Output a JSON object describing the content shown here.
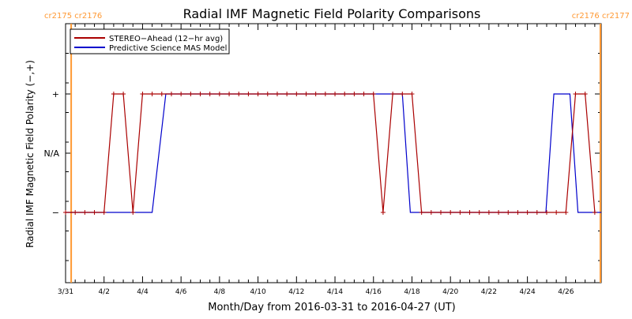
{
  "chart_data": {
    "type": "line",
    "title": "Radial IMF Magnetic Field Polarity Comparisons",
    "xlabel": "Month/Day from 2016-03-31 to 2016-04-27 (UT)",
    "ylabel": "Radial IMF Magnetic Field Polarity (−,+)",
    "xlim": [
      "2016-03-31",
      "2016-04-27T20:00"
    ],
    "y_levels": [
      "−",
      "N/A",
      "+"
    ],
    "y_tick_labels": [
      "−",
      "N/A",
      "+"
    ],
    "x_tick_labels": [
      "3/31",
      "4/2",
      "4/4",
      "4/6",
      "4/8",
      "4/10",
      "4/12",
      "4/14",
      "4/16",
      "4/18",
      "4/20",
      "4/22",
      "4/24",
      "4/26"
    ],
    "grid": false,
    "legend_position": "top-left",
    "carrington_markers": [
      {
        "label": "cr2175 cr2176",
        "x": "2016-03-31T07:00",
        "side": "left"
      },
      {
        "label": "cr2176 cr2177",
        "x": "2016-04-27T19:00",
        "side": "right"
      }
    ],
    "series": [
      {
        "name": "STEREO−Ahead (12−hr avg)",
        "color": "#aa0000",
        "markers": true,
        "points": [
          [
            "2016-03-31T00:00",
            "−"
          ],
          [
            "2016-03-31T12:00",
            "−"
          ],
          [
            "2016-04-01T00:00",
            "−"
          ],
          [
            "2016-04-01T12:00",
            "−"
          ],
          [
            "2016-04-02T00:00",
            "−"
          ],
          [
            "2016-04-02T12:00",
            "+"
          ],
          [
            "2016-04-03T00:00",
            "+"
          ],
          [
            "2016-04-03T12:00",
            "−"
          ],
          [
            "2016-04-04T00:00",
            "+"
          ],
          [
            "2016-04-04T12:00",
            "+"
          ],
          [
            "2016-04-05T00:00",
            "+"
          ],
          [
            "2016-04-05T12:00",
            "+"
          ],
          [
            "2016-04-06T00:00",
            "+"
          ],
          [
            "2016-04-06T12:00",
            "+"
          ],
          [
            "2016-04-07T00:00",
            "+"
          ],
          [
            "2016-04-07T12:00",
            "+"
          ],
          [
            "2016-04-08T00:00",
            "+"
          ],
          [
            "2016-04-08T12:00",
            "+"
          ],
          [
            "2016-04-09T00:00",
            "+"
          ],
          [
            "2016-04-09T12:00",
            "+"
          ],
          [
            "2016-04-10T00:00",
            "+"
          ],
          [
            "2016-04-10T12:00",
            "+"
          ],
          [
            "2016-04-11T00:00",
            "+"
          ],
          [
            "2016-04-11T12:00",
            "+"
          ],
          [
            "2016-04-12T00:00",
            "+"
          ],
          [
            "2016-04-12T12:00",
            "+"
          ],
          [
            "2016-04-13T00:00",
            "+"
          ],
          [
            "2016-04-13T12:00",
            "+"
          ],
          [
            "2016-04-14T00:00",
            "+"
          ],
          [
            "2016-04-14T12:00",
            "+"
          ],
          [
            "2016-04-15T00:00",
            "+"
          ],
          [
            "2016-04-15T12:00",
            "+"
          ],
          [
            "2016-04-16T00:00",
            "+"
          ],
          [
            "2016-04-16T12:00",
            "−"
          ],
          [
            "2016-04-17T00:00",
            "+"
          ],
          [
            "2016-04-17T12:00",
            "+"
          ],
          [
            "2016-04-18T00:00",
            "+"
          ],
          [
            "2016-04-18T12:00",
            "−"
          ],
          [
            "2016-04-19T00:00",
            "−"
          ],
          [
            "2016-04-19T12:00",
            "−"
          ],
          [
            "2016-04-20T00:00",
            "−"
          ],
          [
            "2016-04-20T12:00",
            "−"
          ],
          [
            "2016-04-21T00:00",
            "−"
          ],
          [
            "2016-04-21T12:00",
            "−"
          ],
          [
            "2016-04-22T00:00",
            "−"
          ],
          [
            "2016-04-22T12:00",
            "−"
          ],
          [
            "2016-04-23T00:00",
            "−"
          ],
          [
            "2016-04-23T12:00",
            "−"
          ],
          [
            "2016-04-24T00:00",
            "−"
          ],
          [
            "2016-04-24T12:00",
            "−"
          ],
          [
            "2016-04-25T00:00",
            "−"
          ],
          [
            "2016-04-25T12:00",
            "−"
          ],
          [
            "2016-04-26T00:00",
            "−"
          ],
          [
            "2016-04-26T12:00",
            "+"
          ],
          [
            "2016-04-27T00:00",
            "+"
          ],
          [
            "2016-04-27T12:00",
            "−"
          ]
        ]
      },
      {
        "name": "Predictive Science MAS Model",
        "color": "#0000cc",
        "markers": false,
        "points": [
          [
            "2016-03-31T00:00",
            "−"
          ],
          [
            "2016-04-04T12:00",
            "−"
          ],
          [
            "2016-04-05T05:00",
            "+"
          ],
          [
            "2016-04-17T12:00",
            "+"
          ],
          [
            "2016-04-17T22:00",
            "−"
          ],
          [
            "2016-04-24T23:00",
            "−"
          ],
          [
            "2016-04-25T09:00",
            "+"
          ],
          [
            "2016-04-26T05:00",
            "+"
          ],
          [
            "2016-04-26T15:00",
            "−"
          ],
          [
            "2016-04-27T20:00",
            "−"
          ]
        ]
      }
    ]
  }
}
